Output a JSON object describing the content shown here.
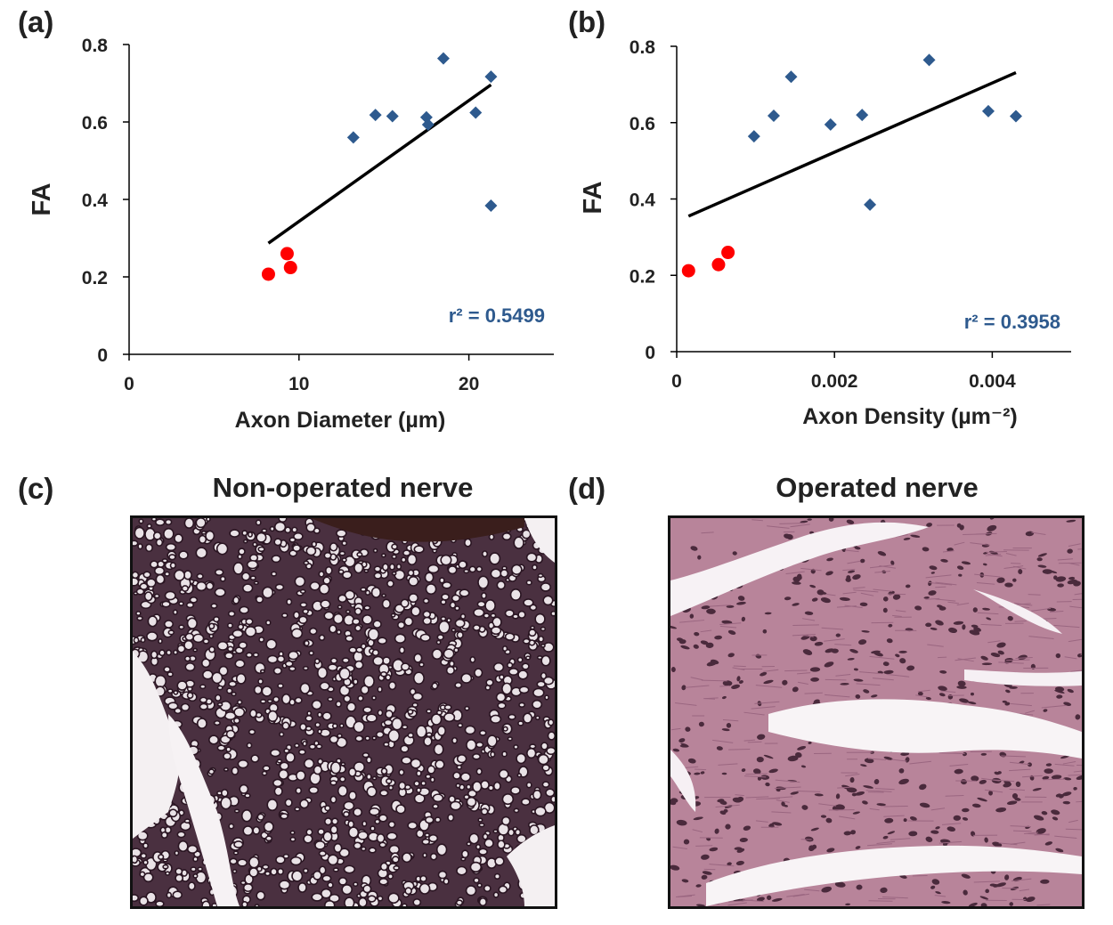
{
  "chart_data": [
    {
      "panel": "(a)",
      "type": "scatter",
      "xlabel": "Axon Diameter (µm)",
      "ylabel": "FA",
      "xlim": [
        0,
        25
      ],
      "ylim": [
        0,
        0.8
      ],
      "xticks": [
        0,
        10,
        20
      ],
      "yticks": [
        0,
        0.2,
        0.4,
        0.6,
        0.8
      ],
      "xtick_labels": [
        "0",
        "10",
        "20"
      ],
      "ytick_labels": [
        "0",
        "0.2",
        "0.4",
        "0.6",
        "0.8"
      ],
      "annotation": "r² = 0.5499",
      "series": [
        {
          "marker": "diamond",
          "color": "#2e5a8e",
          "x": [
            13.2,
            14.5,
            15.5,
            17.5,
            17.6,
            18.5,
            20.4,
            21.3,
            21.3
          ],
          "y": [
            0.56,
            0.618,
            0.615,
            0.612,
            0.593,
            0.764,
            0.624,
            0.717,
            0.384
          ]
        },
        {
          "marker": "circle",
          "color": "#ff0000",
          "x": [
            8.2,
            9.3,
            9.5
          ],
          "y": [
            0.207,
            0.26,
            0.224
          ]
        }
      ],
      "trendline": {
        "x": [
          8.2,
          21.3
        ],
        "y": [
          0.287,
          0.696
        ]
      }
    },
    {
      "panel": "(b)",
      "type": "scatter",
      "xlabel": "Axon Density (µm⁻²)",
      "ylabel": "FA",
      "xlim": [
        0,
        0.005
      ],
      "ylim": [
        0,
        0.8
      ],
      "xticks": [
        0,
        0.002,
        0.004
      ],
      "yticks": [
        0,
        0.2,
        0.4,
        0.6,
        0.8
      ],
      "xtick_labels": [
        "0",
        "0.002",
        "0.004"
      ],
      "ytick_labels": [
        "0",
        "0.2",
        "0.4",
        "0.6",
        "0.8"
      ],
      "annotation": "r² = 0.3958",
      "series": [
        {
          "marker": "diamond",
          "color": "#2e5a8e",
          "x": [
            0.00098,
            0.00123,
            0.00145,
            0.00195,
            0.00235,
            0.00245,
            0.0032,
            0.00395,
            0.0043
          ],
          "y": [
            0.564,
            0.618,
            0.72,
            0.595,
            0.62,
            0.385,
            0.764,
            0.63,
            0.617
          ]
        },
        {
          "marker": "circle",
          "color": "#ff0000",
          "x": [
            0.00015,
            0.00053,
            0.00065
          ],
          "y": [
            0.212,
            0.228,
            0.26
          ]
        }
      ],
      "trendline": {
        "x": [
          0.00015,
          0.0043
        ],
        "y": [
          0.355,
          0.731
        ]
      }
    }
  ],
  "panels": {
    "a_label": "(a)",
    "b_label": "(b)",
    "c_label": "(c)",
    "d_label": "(d)",
    "c_title": "Non-operated nerve",
    "d_title": "Operated nerve"
  },
  "colors": {
    "diamond": "#2e5a8e",
    "circle": "#ff0000",
    "annotation": "#2e5a8e",
    "stain_non_operated": "#3a2230",
    "stain_operated": "#b07a8e"
  }
}
